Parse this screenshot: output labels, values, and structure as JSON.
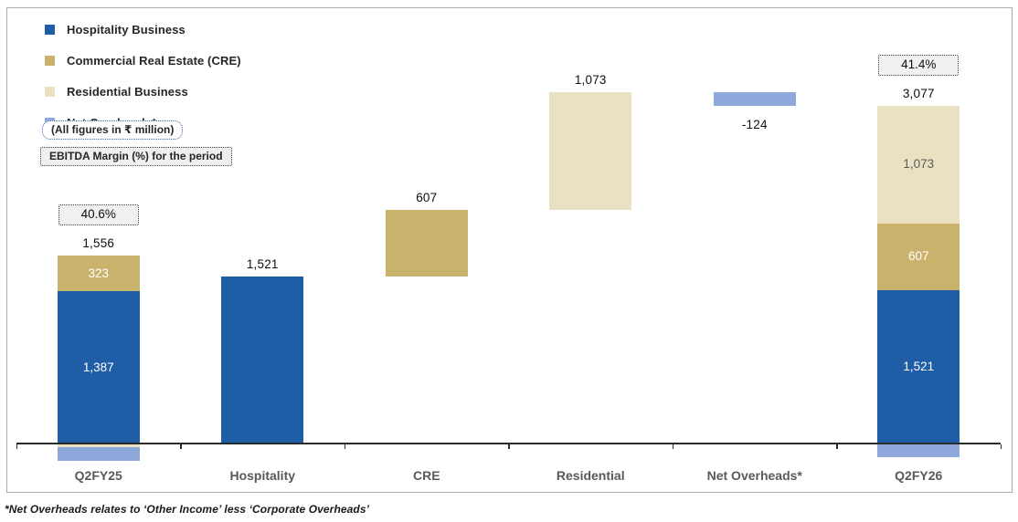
{
  "notes": {
    "units": "(All figures in ₹ million)",
    "margin": "EBITDA Margin (%) for the period",
    "footnote": "*Net Overheads relates to ‘Other Income’ less ‘Corporate Overheads’"
  },
  "legend": {
    "items": [
      {
        "key": "hospitality",
        "label": "Hospitality Business",
        "color": "#1f5da6"
      },
      {
        "key": "cre",
        "label": "Commercial Real Estate (CRE)",
        "color": "#c9b26b"
      },
      {
        "key": "residential",
        "label": "Residential Business",
        "color": "#eae1c2"
      },
      {
        "key": "net_overheads",
        "label": "Net Overheads*",
        "color": "#8fa8db"
      }
    ]
  },
  "chart_data": {
    "type": "bar",
    "subtype": "stacked_waterfall",
    "unit": "INR million",
    "title": "",
    "legend_position": "top-left",
    "grid": false,
    "value_axis": {
      "visible": false,
      "min": -160,
      "max": 3300
    },
    "categories": [
      "Q2FY25",
      "Hospitality",
      "CRE",
      "Residential",
      "Net Overheads*",
      "Q2FY26"
    ],
    "ebitda_margin_labels": {
      "Q2FY25": "40.6%",
      "Q2FY26": "41.4%"
    },
    "bars": [
      {
        "category": "Q2FY25",
        "total": 1556,
        "total_label": "1,556",
        "total_label_position": "above",
        "margin_label": "40.6%",
        "segments": [
          {
            "series": "cre",
            "value": 323,
            "from": 1387,
            "to": 1710,
            "label": "323",
            "label_tone": "light"
          },
          {
            "series": "hospitality",
            "value": 1387,
            "from": 0,
            "to": 1387,
            "label": "1,387",
            "label_tone": "light"
          },
          {
            "series": "residential",
            "value": -30,
            "from": -30,
            "to": 0,
            "label": null,
            "estimated": true
          },
          {
            "series": "net_overheads",
            "value": -124,
            "from": -154,
            "to": -30,
            "label": null,
            "estimated": true
          }
        ]
      },
      {
        "category": "Hospitality",
        "total": 1521,
        "total_label": "1,521",
        "total_label_position": "above",
        "margin_label": null,
        "segments": [
          {
            "series": "hospitality",
            "value": 1521,
            "from": 0,
            "to": 1521,
            "label": null
          }
        ]
      },
      {
        "category": "CRE",
        "total": 607,
        "total_label": "607",
        "total_label_position": "above",
        "margin_label": null,
        "segments": [
          {
            "series": "cre",
            "value": 607,
            "from": 1521,
            "to": 2128,
            "label": null
          }
        ]
      },
      {
        "category": "Residential",
        "total": 1073,
        "total_label": "1,073",
        "total_label_position": "above",
        "margin_label": null,
        "segments": [
          {
            "series": "residential",
            "value": 1073,
            "from": 2128,
            "to": 3201,
            "label": null
          }
        ]
      },
      {
        "category": "Net Overheads*",
        "total": -124,
        "total_label": "-124",
        "total_label_position": "below",
        "margin_label": null,
        "segments": [
          {
            "series": "net_overheads",
            "value": -124,
            "from": 3077,
            "to": 3201,
            "label": null
          }
        ]
      },
      {
        "category": "Q2FY26",
        "total": 3077,
        "total_label": "3,077",
        "total_label_position": "above",
        "margin_label": "41.4%",
        "segments": [
          {
            "series": "residential",
            "value": 1073,
            "from": 2004,
            "to": 3077,
            "label": "1,073",
            "label_tone": "dark"
          },
          {
            "series": "cre",
            "value": 607,
            "from": 1397,
            "to": 2004,
            "label": "607",
            "label_tone": "light"
          },
          {
            "series": "hospitality",
            "value": 1521,
            "from": -124,
            "to": 1397,
            "label": "1,521",
            "label_tone": "light"
          },
          {
            "series": "net_overheads",
            "value": -124,
            "from": -124,
            "to": 0,
            "label": null
          }
        ]
      }
    ]
  }
}
